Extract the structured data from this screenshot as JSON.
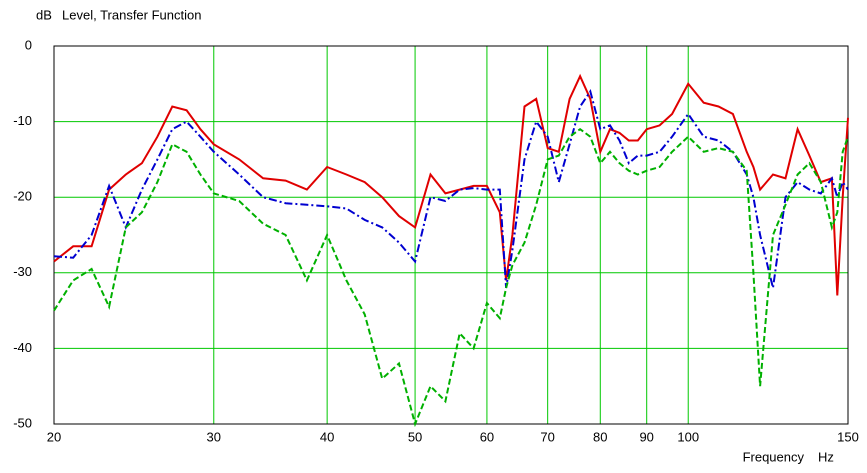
{
  "chart_data": {
    "type": "line",
    "title": "Level, Transfer Function",
    "ylabel": "dB",
    "xlabel": "Frequency",
    "xunit": "Hz",
    "xscale": "log",
    "grid": true,
    "grid_color": "#00c800",
    "x": [
      20,
      21,
      22,
      23,
      24,
      25,
      26,
      27,
      28,
      29,
      30,
      32,
      34,
      36,
      38,
      40,
      42,
      44,
      46,
      48,
      50,
      52,
      54,
      56,
      58,
      60,
      62,
      63,
      64,
      66,
      68,
      70,
      72,
      74,
      76,
      78,
      80,
      82,
      84,
      86,
      88,
      90,
      93,
      96,
      100,
      104,
      108,
      112,
      116,
      118,
      120,
      124,
      128,
      132,
      136,
      140,
      144,
      146,
      148,
      150
    ],
    "series": [
      {
        "color": "#e00000",
        "style": "solid",
        "values": [
          -28.5,
          -26.5,
          -26.5,
          -19,
          -17,
          -15.5,
          -12,
          -8,
          -8.5,
          -11,
          -13,
          -15,
          -17.5,
          -17.8,
          -19,
          -16,
          -17,
          -18,
          -20,
          -22.5,
          -24,
          -17,
          -19.5,
          -19,
          -18.5,
          -18.5,
          -22,
          -31,
          -25,
          -8,
          -7,
          -13.5,
          -14,
          -7,
          -4,
          -7,
          -14,
          -11,
          -11.5,
          -12.5,
          -12.5,
          -11,
          -10.5,
          -9,
          -5,
          -7.5,
          -8,
          -9,
          -14,
          -16,
          -19,
          -17,
          -17.5,
          -11,
          -14.5,
          -18,
          -17.5,
          -33,
          -20,
          -9.5
        ]
      },
      {
        "color": "#0000d0",
        "style": "dashdot",
        "values": [
          -27.8,
          -28,
          -25,
          -18.5,
          -24,
          -19,
          -15,
          -11,
          -10,
          -12,
          -14,
          -17,
          -20,
          -20.8,
          -21,
          -21.2,
          -21.5,
          -23,
          -24,
          -26,
          -28.5,
          -20,
          -20.5,
          -19,
          -18.8,
          -19,
          -19,
          -32,
          -27,
          -15,
          -10,
          -12,
          -18,
          -13,
          -8,
          -6,
          -11,
          -10.5,
          -12.5,
          -15.5,
          -14.5,
          -14.5,
          -14,
          -12,
          -9,
          -12,
          -12.5,
          -14,
          -17,
          -20,
          -25,
          -32,
          -20,
          -18,
          -19,
          -19.5,
          -17.5,
          -20,
          -18,
          -19
        ]
      },
      {
        "color": "#00b000",
        "style": "dashed",
        "values": [
          -35,
          -31,
          -29.5,
          -34.5,
          -24,
          -22,
          -18,
          -13,
          -14,
          -17,
          -19.5,
          -20.5,
          -23.5,
          -25,
          -31,
          -25,
          -31,
          -35.5,
          -44,
          -42,
          -50,
          -45,
          -47,
          -38,
          -40,
          -34,
          -36,
          -32,
          -29,
          -26,
          -21,
          -15,
          -14.5,
          -12,
          -11,
          -12,
          -15.5,
          -14,
          -15.5,
          -16.5,
          -17,
          -16.5,
          -16,
          -14,
          -12,
          -14,
          -13.5,
          -14,
          -16.5,
          -30,
          -45,
          -25,
          -21,
          -17,
          -15.5,
          -18,
          -24,
          -22,
          -14,
          -12
        ]
      }
    ],
    "xlim": [
      20,
      150
    ],
    "xticks": [
      20,
      30,
      40,
      50,
      60,
      70,
      80,
      90,
      100,
      150
    ],
    "ylim": [
      -50,
      0
    ],
    "yticks": [
      0,
      -10,
      -20,
      -30,
      -40,
      -50
    ]
  }
}
